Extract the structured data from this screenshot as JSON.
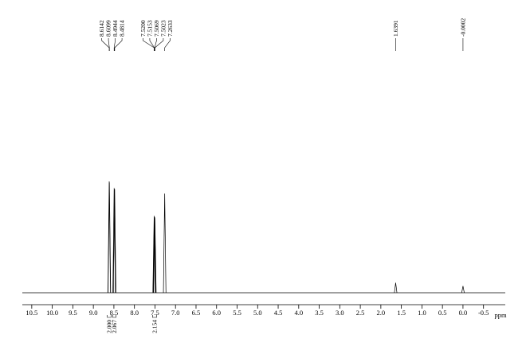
{
  "chart_data": {
    "type": "nmr-spectrum",
    "x_label": "ppm",
    "xlim": [
      10.73,
      -1.03
    ],
    "xticks": [
      10.5,
      {
        "value": 10,
        "label": "10.0"
      },
      9.5,
      {
        "value": 9,
        "label": "9.0"
      },
      8.5,
      {
        "value": 8,
        "label": "8.0"
      },
      7.5,
      {
        "value": 7,
        "label": "7.0"
      },
      6.5,
      {
        "value": 6,
        "label": "6.0"
      },
      5.5,
      {
        "value": 5,
        "label": "5.0"
      },
      4.5,
      {
        "value": 4,
        "label": "4.0"
      },
      3.5,
      {
        "value": 3,
        "label": "3.0"
      },
      2.5,
      {
        "value": 2,
        "label": "2.0"
      },
      1.5,
      {
        "value": 1,
        "label": "1.0"
      },
      0.5,
      {
        "value": 0,
        "label": "0.0"
      },
      -0.5
    ],
    "ylim": [
      0,
      100
    ],
    "color": "#000000",
    "peaks": {
      "x": [
        8.6142,
        8.6099,
        8.4944,
        8.4814,
        {
          "value": 7.52,
          "label": "7.5200"
        },
        7.5153,
        7.5069,
        7.5023,
        7.2633,
        1.6391,
        -0.0002
      ],
      "values": [
        100,
        99,
        94,
        93,
        69,
        68,
        68,
        67,
        89,
        9,
        6
      ]
    },
    "integrals": [
      {
        "range": [
          8.66,
          8.57
        ],
        "value": {
          "value": 2,
          "label": "2.000"
        }
      },
      {
        "range": [
          8.53,
          8.45
        ],
        "value": {
          "value": 2.067,
          "label": "2.067"
        }
      },
      {
        "range": [
          7.56,
          7.46
        ],
        "value": {
          "value": 2.154,
          "label": "2.154"
        }
      }
    ]
  }
}
